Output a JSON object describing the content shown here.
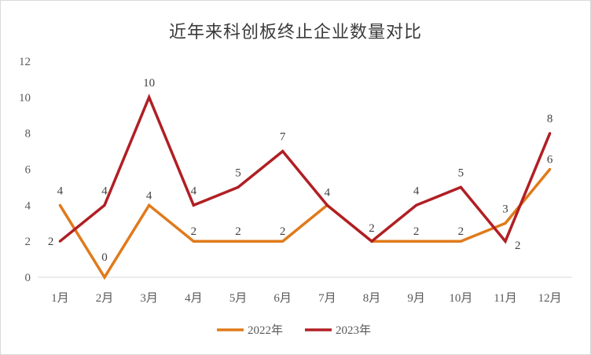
{
  "chart_data": {
    "type": "line",
    "title": "近年来科创板终止企业数量对比",
    "categories": [
      "1月",
      "2月",
      "3月",
      "4月",
      "5月",
      "6月",
      "7月",
      "8月",
      "9月",
      "10月",
      "11月",
      "12月"
    ],
    "series": [
      {
        "name": "2022年",
        "color": "#E07A1B",
        "values": [
          4,
          0,
          4,
          2,
          2,
          2,
          4,
          2,
          2,
          2,
          3,
          6
        ]
      },
      {
        "name": "2023年",
        "color": "#B01F24",
        "values": [
          2,
          4,
          10,
          4,
          5,
          7,
          4,
          2,
          4,
          5,
          2,
          8
        ]
      }
    ],
    "yticks": [
      "0",
      "2",
      "4",
      "6",
      "8",
      "10",
      "12"
    ],
    "ylim": [
      0,
      12
    ],
    "xlabel": "",
    "ylabel": "",
    "grid": false,
    "legend": "bottom-center"
  }
}
